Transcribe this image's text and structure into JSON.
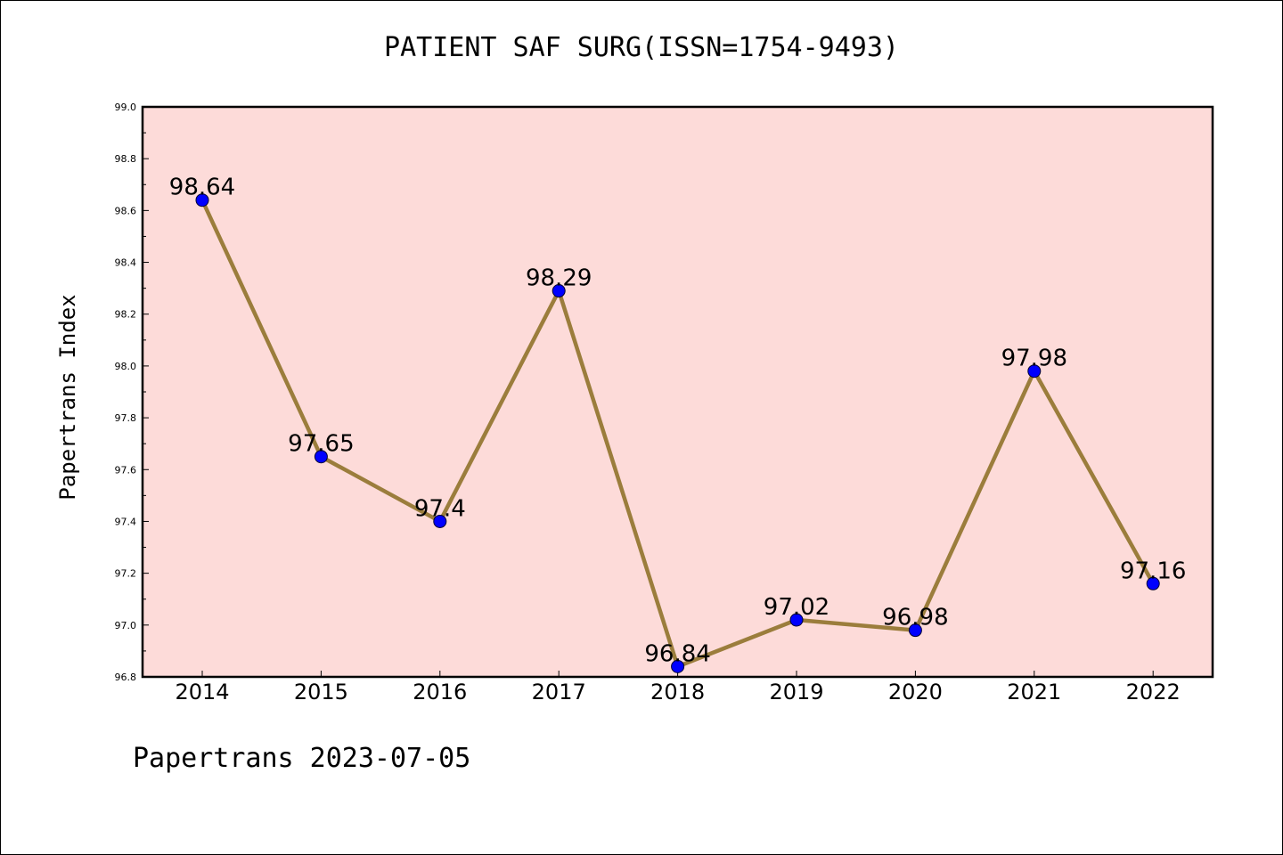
{
  "chart_data": {
    "type": "line",
    "title": "PATIENT SAF SURG(ISSN=1754-9493)",
    "xlabel": "",
    "ylabel": "Papertrans Index",
    "footer": "Papertrans 2023-07-05",
    "categories": [
      "2014",
      "2015",
      "2016",
      "2017",
      "2018",
      "2019",
      "2020",
      "2021",
      "2022"
    ],
    "values": [
      98.64,
      97.65,
      97.4,
      98.29,
      96.84,
      97.02,
      96.98,
      97.98,
      97.16
    ],
    "data_labels": [
      "98.64",
      "97.65",
      "97.4",
      "98.29",
      "96.84",
      "97.02",
      "96.98",
      "97.98",
      "97.16"
    ],
    "ylim": [
      96.8,
      99.0
    ],
    "yticks": [
      "96.8",
      "97.0",
      "97.2",
      "97.4",
      "97.6",
      "97.8",
      "98.0",
      "98.2",
      "98.4",
      "98.6",
      "98.8",
      "99.0"
    ],
    "grid": false,
    "colors": {
      "plot_background": "#fddbd9",
      "line": "#9b7d3c",
      "marker": "#0000ff"
    }
  }
}
